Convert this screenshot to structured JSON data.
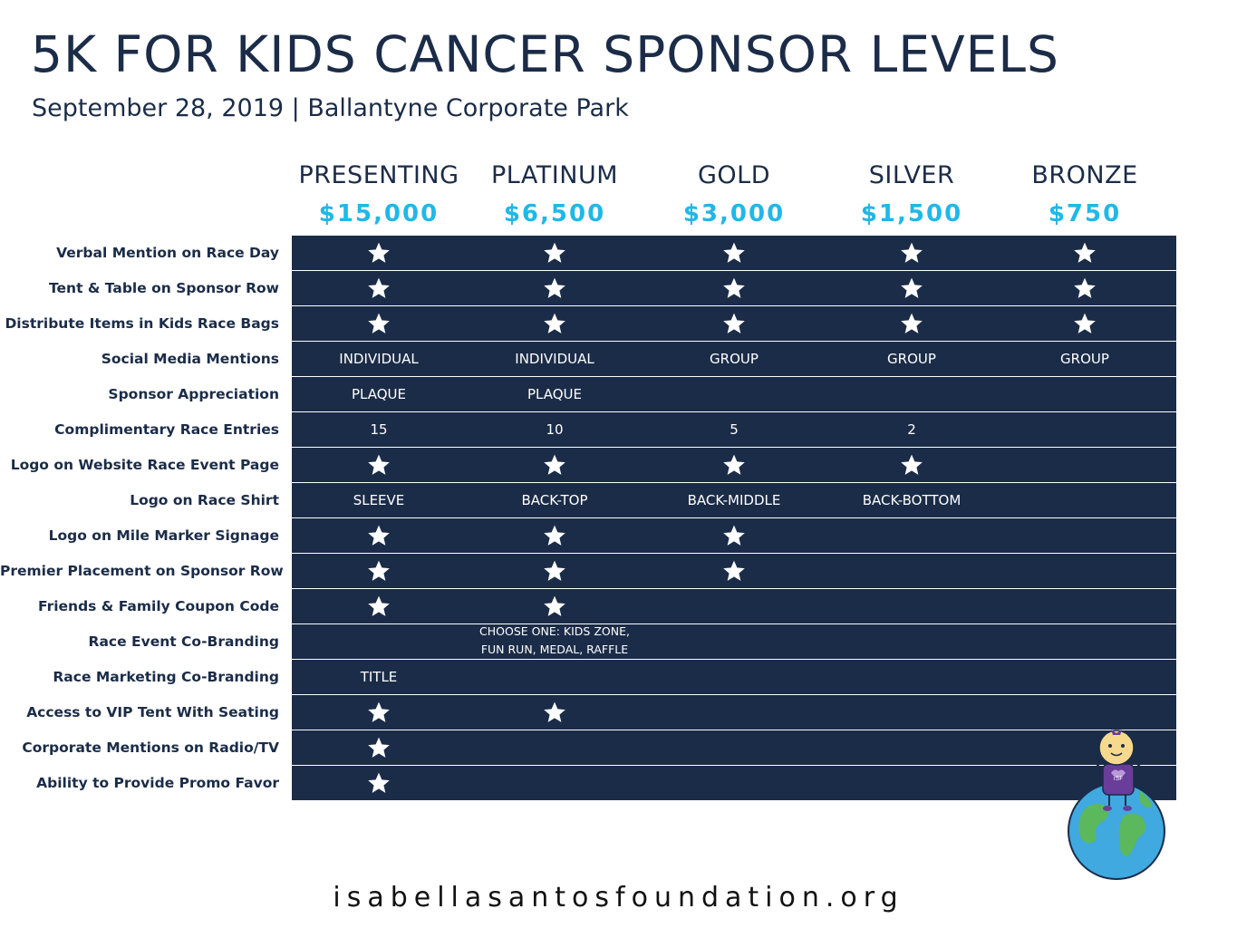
{
  "header": {
    "title": "5K FOR KIDS CANCER SPONSOR LEVELS",
    "subtitle": "September 28, 2019  |  Ballantyne Corporate Park"
  },
  "levels": [
    {
      "name": "PRESENTING",
      "price": "$15,000"
    },
    {
      "name": "PLATINUM",
      "price": "$6,500"
    },
    {
      "name": "GOLD",
      "price": "$3,000"
    },
    {
      "name": "SILVER",
      "price": "$1,500"
    },
    {
      "name": "BRONZE",
      "price": "$750"
    }
  ],
  "rows": [
    {
      "label": "Verbal Mention on Race Day",
      "cells": [
        "star",
        "star",
        "star",
        "star",
        "star"
      ]
    },
    {
      "label": "Tent & Table on Sponsor Row",
      "cells": [
        "star",
        "star",
        "star",
        "star",
        "star"
      ]
    },
    {
      "label": "Distribute Items in Kids Race Bags",
      "cells": [
        "star",
        "star",
        "star",
        "star",
        "star"
      ]
    },
    {
      "label": "Social Media Mentions",
      "cells": [
        "INDIVIDUAL",
        "INDIVIDUAL",
        "GROUP",
        "GROUP",
        "GROUP"
      ]
    },
    {
      "label": "Sponsor Appreciation",
      "cells": [
        "PLAQUE",
        "PLAQUE",
        "",
        "",
        ""
      ]
    },
    {
      "label": "Complimentary Race Entries",
      "cells": [
        "15",
        "10",
        "5",
        "2",
        ""
      ]
    },
    {
      "label": "Logo on Website Race Event Page",
      "cells": [
        "star",
        "star",
        "star",
        "star",
        ""
      ]
    },
    {
      "label": "Logo on Race Shirt",
      "cells": [
        "SLEEVE",
        "BACK-TOP",
        "BACK-MIDDLE",
        "BACK-BOTTOM",
        ""
      ]
    },
    {
      "label": "Logo on Mile Marker Signage",
      "cells": [
        "star",
        "star",
        "star",
        "",
        ""
      ]
    },
    {
      "label": "Premier Placement on Sponsor Row",
      "cells": [
        "star",
        "star",
        "star",
        "",
        ""
      ]
    },
    {
      "label": "Friends & Family Coupon Code",
      "cells": [
        "star",
        "star",
        "",
        "",
        ""
      ]
    },
    {
      "label": "Race Event Co-Branding",
      "cells": [
        "",
        "CHOOSE ONE: KIDS ZONE, FUN RUN, MEDAL, RAFFLE",
        "",
        "",
        ""
      ]
    },
    {
      "label": "Race Marketing Co-Branding",
      "cells": [
        "TITLE",
        "",
        "",
        "",
        ""
      ]
    },
    {
      "label": "Access to VIP Tent With Seating",
      "cells": [
        "star",
        "star",
        "",
        "",
        ""
      ]
    },
    {
      "label": "Corporate Mentions on Radio/TV",
      "cells": [
        "star",
        "",
        "",
        "",
        ""
      ]
    },
    {
      "label": "Ability to Provide Promo Favor",
      "cells": [
        "star",
        "",
        "",
        "",
        ""
      ]
    }
  ],
  "mascot": {
    "badge_text": "iSF"
  },
  "footer": {
    "url": "isabellasantosfoundation.org"
  },
  "colors": {
    "navy": "#1b2c48",
    "price_blue": "#1fb8e8",
    "star": "#ffffff"
  }
}
